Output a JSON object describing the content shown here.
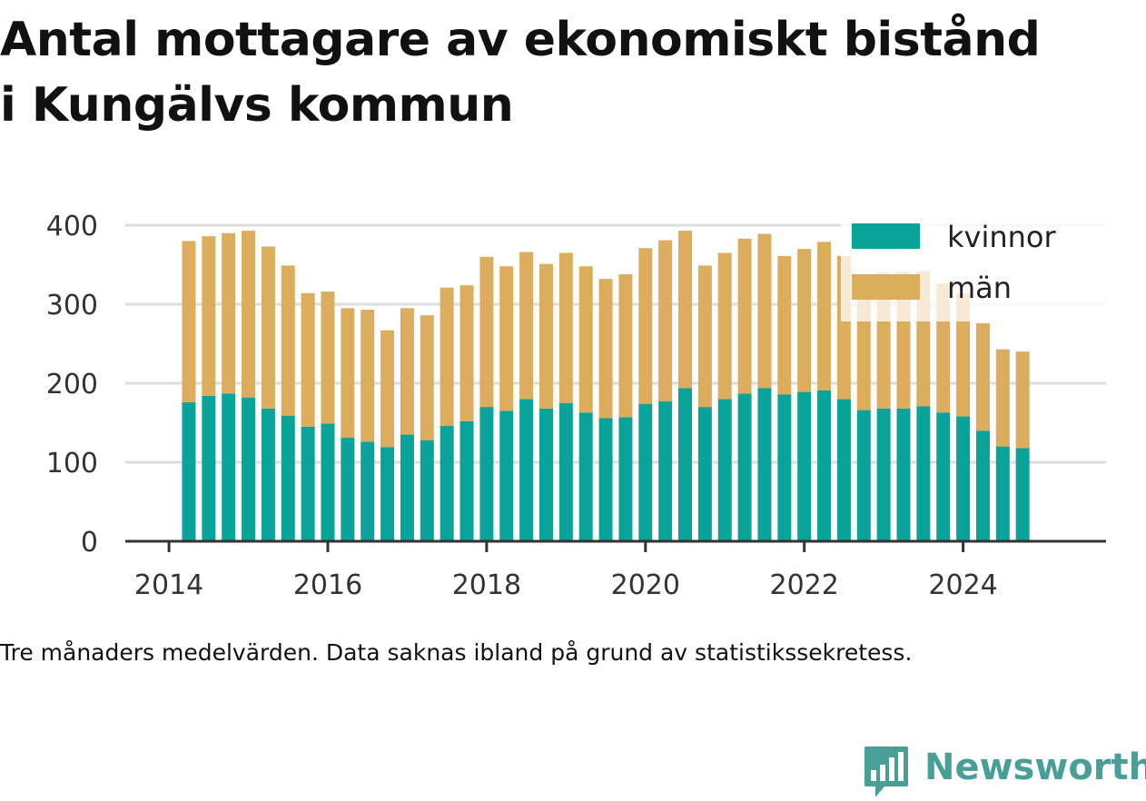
{
  "title_lines": [
    "Antal mottagare av ekonomiskt bistånd",
    "i Kungälvs kommun"
  ],
  "caption": "Tre månaders medelvärden. Data saknas ibland på grund av statistikssekretess.",
  "brand": "Newsworthy",
  "colors": {
    "kvinnor": "#0aa39a",
    "man": "#dcad5c",
    "grid": "#dddddd",
    "axis": "#333333"
  },
  "chart_data": {
    "type": "bar",
    "stacked": true,
    "x_start": 2014.25,
    "x_step": 0.25,
    "xlim": [
      2013.45,
      2025.8
    ],
    "ylim": [
      0,
      400
    ],
    "yticks": [
      0,
      100,
      200,
      300,
      400
    ],
    "xticks": [
      2014,
      2016,
      2018,
      2020,
      2022,
      2024
    ],
    "grid": true,
    "legend_position": "top-right",
    "series": [
      {
        "name": "kvinnor",
        "values": [
          176,
          184,
          187,
          182,
          168,
          159,
          145,
          149,
          131,
          126,
          119,
          135,
          128,
          146,
          152,
          170,
          165,
          180,
          168,
          175,
          163,
          156,
          157,
          174,
          177,
          194,
          170,
          180,
          187,
          194,
          186,
          189,
          191,
          180,
          166,
          168,
          168,
          171,
          163,
          158,
          140,
          120,
          118
        ]
      },
      {
        "name": "män",
        "values": [
          204,
          202,
          203,
          211,
          205,
          190,
          169,
          167,
          164,
          167,
          148,
          160,
          158,
          175,
          172,
          190,
          183,
          186,
          183,
          190,
          185,
          176,
          181,
          197,
          204,
          199,
          179,
          185,
          196,
          195,
          175,
          181,
          188,
          181,
          168,
          172,
          173,
          171,
          163,
          156,
          136,
          123,
          122
        ]
      }
    ]
  }
}
